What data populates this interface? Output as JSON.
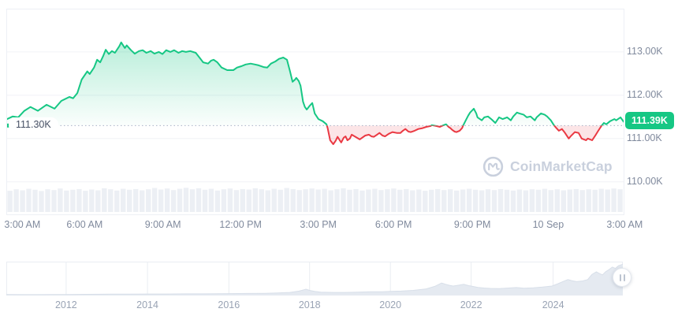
{
  "watermark": {
    "text": "CoinMarketCap"
  },
  "chart": {
    "colors": {
      "up": "#16C784",
      "down": "#EA3943",
      "up_fill_top": "rgba(22,199,132,0.30)",
      "up_fill_bottom": "rgba(22,199,132,0.02)",
      "down_fill": "rgba(234,57,67,0.13)",
      "grid": "#F0F2F6",
      "panel_border": "#EDF0F5",
      "axis_label": "#808A9D",
      "baseline_dot": "#A9B3C6",
      "baseline_label": "#465064",
      "volume": "#ECEFF4",
      "watermark": "#C9D0DD",
      "nav_fill": "#E5EAF1",
      "nav_edge": "#D8DFE9",
      "nav_grid": "#EAEDF2",
      "nav_year": "#99A3B4",
      "handle_bar": "#BCC4D0"
    }
  },
  "chart_data": {
    "type": "area",
    "title": "",
    "y_axis": {
      "ymin": 109.25,
      "ymax": 113.98,
      "tick_values": [
        113,
        112,
        111,
        110
      ],
      "tick_labels": [
        "113.00K",
        "112.00K",
        "111.00K",
        "110.00K"
      ]
    },
    "x_axis": {
      "ticks": [
        {
          "label": "3:00 AM",
          "x": 0.026
        },
        {
          "label": "6:00 AM",
          "x": 0.127
        },
        {
          "label": "9:00 AM",
          "x": 0.254
        },
        {
          "label": "12:00 PM",
          "x": 0.38
        },
        {
          "label": "3:00 PM",
          "x": 0.506
        },
        {
          "label": "6:00 PM",
          "x": 0.628
        },
        {
          "label": "9:00 PM",
          "x": 0.756
        },
        {
          "label": "10 Sep",
          "x": 0.879
        },
        {
          "label": "3:00 AM",
          "x": 1.003
        }
      ]
    },
    "baseline": {
      "value": 111.3,
      "label": "111.30K"
    },
    "last_price": {
      "value": 111.39,
      "label": "111.39K"
    },
    "series": {
      "name": "price",
      "points": [
        [
          0.0,
          111.45
        ],
        [
          0.009,
          111.51
        ],
        [
          0.018,
          111.49
        ],
        [
          0.028,
          111.64
        ],
        [
          0.038,
          111.73
        ],
        [
          0.05,
          111.64
        ],
        [
          0.064,
          111.78
        ],
        [
          0.077,
          111.69
        ],
        [
          0.088,
          111.87
        ],
        [
          0.101,
          111.96
        ],
        [
          0.107,
          111.93
        ],
        [
          0.114,
          112.05
        ],
        [
          0.121,
          112.36
        ],
        [
          0.13,
          112.55
        ],
        [
          0.134,
          112.49
        ],
        [
          0.141,
          112.64
        ],
        [
          0.146,
          112.82
        ],
        [
          0.151,
          112.76
        ],
        [
          0.156,
          112.91
        ],
        [
          0.16,
          113.05
        ],
        [
          0.165,
          112.95
        ],
        [
          0.17,
          113.02
        ],
        [
          0.175,
          112.98
        ],
        [
          0.182,
          113.13
        ],
        [
          0.185,
          113.22
        ],
        [
          0.191,
          113.09
        ],
        [
          0.194,
          113.15
        ],
        [
          0.201,
          113.04
        ],
        [
          0.207,
          112.96
        ],
        [
          0.214,
          113.02
        ],
        [
          0.22,
          113.04
        ],
        [
          0.226,
          112.98
        ],
        [
          0.233,
          113.02
        ],
        [
          0.239,
          112.96
        ],
        [
          0.246,
          113.0
        ],
        [
          0.252,
          112.95
        ],
        [
          0.258,
          113.04
        ],
        [
          0.265,
          113.0
        ],
        [
          0.271,
          113.04
        ],
        [
          0.278,
          112.98
        ],
        [
          0.284,
          113.02
        ],
        [
          0.29,
          113.0
        ],
        [
          0.297,
          113.02
        ],
        [
          0.306,
          112.98
        ],
        [
          0.312,
          112.87
        ],
        [
          0.318,
          112.76
        ],
        [
          0.326,
          112.73
        ],
        [
          0.331,
          112.8
        ],
        [
          0.335,
          112.82
        ],
        [
          0.341,
          112.76
        ],
        [
          0.348,
          112.64
        ],
        [
          0.357,
          112.58
        ],
        [
          0.367,
          112.58
        ],
        [
          0.373,
          112.64
        ],
        [
          0.38,
          112.67
        ],
        [
          0.387,
          112.71
        ],
        [
          0.395,
          112.73
        ],
        [
          0.402,
          112.71
        ],
        [
          0.408,
          112.69
        ],
        [
          0.416,
          112.65
        ],
        [
          0.422,
          112.64
        ],
        [
          0.428,
          112.73
        ],
        [
          0.435,
          112.78
        ],
        [
          0.441,
          112.84
        ],
        [
          0.448,
          112.87
        ],
        [
          0.454,
          112.82
        ],
        [
          0.459,
          112.55
        ],
        [
          0.463,
          112.31
        ],
        [
          0.467,
          112.36
        ],
        [
          0.469,
          112.4
        ],
        [
          0.473,
          112.33
        ],
        [
          0.476,
          112.22
        ],
        [
          0.48,
          111.85
        ],
        [
          0.483,
          111.73
        ],
        [
          0.486,
          111.67
        ],
        [
          0.491,
          111.76
        ],
        [
          0.495,
          111.82
        ],
        [
          0.499,
          111.58
        ],
        [
          0.505,
          111.45
        ],
        [
          0.512,
          111.4
        ],
        [
          0.518,
          111.33
        ],
        [
          0.52,
          111.24
        ],
        [
          0.524,
          110.96
        ],
        [
          0.529,
          110.87
        ],
        [
          0.533,
          110.95
        ],
        [
          0.536,
          111.04
        ],
        [
          0.54,
          110.95
        ],
        [
          0.542,
          110.91
        ],
        [
          0.546,
          111.02
        ],
        [
          0.549,
          111.05
        ],
        [
          0.552,
          110.96
        ],
        [
          0.556,
          111.0
        ],
        [
          0.559,
          111.09
        ],
        [
          0.565,
          111.04
        ],
        [
          0.572,
          110.98
        ],
        [
          0.574,
          111.0
        ],
        [
          0.581,
          111.07
        ],
        [
          0.587,
          111.09
        ],
        [
          0.591,
          111.05
        ],
        [
          0.595,
          111.04
        ],
        [
          0.6,
          111.09
        ],
        [
          0.604,
          111.13
        ],
        [
          0.609,
          111.07
        ],
        [
          0.613,
          111.05
        ],
        [
          0.619,
          111.11
        ],
        [
          0.625,
          111.15
        ],
        [
          0.632,
          111.13
        ],
        [
          0.638,
          111.13
        ],
        [
          0.642,
          111.18
        ],
        [
          0.646,
          111.22
        ],
        [
          0.651,
          111.16
        ],
        [
          0.655,
          111.15
        ],
        [
          0.661,
          111.18
        ],
        [
          0.667,
          111.22
        ],
        [
          0.674,
          111.24
        ],
        [
          0.68,
          111.27
        ],
        [
          0.687,
          111.29
        ],
        [
          0.689,
          111.31
        ],
        [
          0.696,
          111.29
        ],
        [
          0.702,
          111.27
        ],
        [
          0.708,
          111.31
        ],
        [
          0.712,
          111.33
        ],
        [
          0.716,
          111.27
        ],
        [
          0.719,
          111.24
        ],
        [
          0.722,
          111.2
        ],
        [
          0.726,
          111.16
        ],
        [
          0.729,
          111.15
        ],
        [
          0.734,
          111.18
        ],
        [
          0.738,
          111.24
        ],
        [
          0.74,
          111.31
        ],
        [
          0.744,
          111.42
        ],
        [
          0.748,
          111.53
        ],
        [
          0.751,
          111.6
        ],
        [
          0.757,
          111.69
        ],
        [
          0.761,
          111.58
        ],
        [
          0.763,
          111.49
        ],
        [
          0.77,
          111.42
        ],
        [
          0.774,
          111.49
        ],
        [
          0.78,
          111.51
        ],
        [
          0.786,
          111.44
        ],
        [
          0.792,
          111.36
        ],
        [
          0.798,
          111.49
        ],
        [
          0.804,
          111.45
        ],
        [
          0.811,
          111.49
        ],
        [
          0.817,
          111.42
        ],
        [
          0.821,
          111.51
        ],
        [
          0.827,
          111.6
        ],
        [
          0.831,
          111.58
        ],
        [
          0.838,
          111.55
        ],
        [
          0.843,
          111.49
        ],
        [
          0.849,
          111.51
        ],
        [
          0.856,
          111.42
        ],
        [
          0.859,
          111.49
        ],
        [
          0.866,
          111.58
        ],
        [
          0.872,
          111.55
        ],
        [
          0.876,
          111.51
        ],
        [
          0.882,
          111.42
        ],
        [
          0.887,
          111.31
        ],
        [
          0.891,
          111.24
        ],
        [
          0.895,
          111.18
        ],
        [
          0.9,
          111.22
        ],
        [
          0.904,
          111.15
        ],
        [
          0.911,
          111.0
        ],
        [
          0.914,
          111.05
        ],
        [
          0.921,
          111.15
        ],
        [
          0.927,
          111.13
        ],
        [
          0.932,
          111.0
        ],
        [
          0.939,
          110.96
        ],
        [
          0.942,
          111.0
        ],
        [
          0.949,
          110.96
        ],
        [
          0.955,
          111.09
        ],
        [
          0.959,
          111.18
        ],
        [
          0.964,
          111.29
        ],
        [
          0.968,
          111.36
        ],
        [
          0.972,
          111.33
        ],
        [
          0.978,
          111.4
        ],
        [
          0.985,
          111.45
        ],
        [
          0.988,
          111.42
        ],
        [
          0.995,
          111.49
        ],
        [
          1.0,
          111.39
        ]
      ]
    },
    "volume": [
      0.84,
      0.9,
      0.86,
      0.92,
      0.88,
      0.83,
      0.9,
      0.87,
      0.93,
      0.85,
      0.88,
      0.91,
      0.84,
      0.89,
      0.86,
      0.94,
      0.9,
      0.85,
      0.92,
      0.88,
      0.91,
      0.86,
      0.9,
      0.95,
      0.89,
      0.93,
      0.87,
      0.92,
      0.96,
      0.9,
      0.94,
      0.88,
      0.92,
      0.85,
      0.9,
      0.93,
      0.87,
      0.91,
      0.89,
      0.94,
      0.9,
      0.86,
      0.92,
      0.88,
      0.95,
      0.91,
      0.87,
      0.9,
      0.93,
      0.89,
      0.92,
      0.86,
      0.9,
      0.94,
      0.88,
      0.91,
      0.85,
      0.89,
      0.92,
      0.87,
      0.9,
      0.93,
      0.88,
      0.91,
      0.86,
      0.89,
      0.84,
      0.88,
      0.91,
      0.87,
      0.9,
      0.85,
      0.89,
      0.92,
      0.88,
      0.86,
      0.9,
      0.87,
      0.91,
      0.88,
      0.85,
      0.89,
      0.86,
      0.9,
      0.88,
      0.92,
      0.87,
      0.9,
      0.86,
      0.89,
      0.91,
      0.87,
      0.9,
      0.88,
      0.92,
      0.89,
      0.93,
      0.9
    ],
    "navigator": {
      "years": [
        {
          "label": "2012",
          "x": 0.097
        },
        {
          "label": "2014",
          "x": 0.229
        },
        {
          "label": "2016",
          "x": 0.361
        },
        {
          "label": "2018",
          "x": 0.492
        },
        {
          "label": "2020",
          "x": 0.623
        },
        {
          "label": "2022",
          "x": 0.754
        },
        {
          "label": "2024",
          "x": 0.887
        }
      ],
      "points": [
        [
          0,
          0.03
        ],
        [
          0.04,
          0.025
        ],
        [
          0.08,
          0.03
        ],
        [
          0.097,
          0.03
        ],
        [
          0.13,
          0.035
        ],
        [
          0.17,
          0.04
        ],
        [
          0.2,
          0.04
        ],
        [
          0.229,
          0.045
        ],
        [
          0.26,
          0.045
        ],
        [
          0.29,
          0.05
        ],
        [
          0.32,
          0.05
        ],
        [
          0.361,
          0.055
        ],
        [
          0.39,
          0.06
        ],
        [
          0.42,
          0.065
        ],
        [
          0.44,
          0.075
        ],
        [
          0.46,
          0.09
        ],
        [
          0.475,
          0.13
        ],
        [
          0.486,
          0.185
        ],
        [
          0.492,
          0.15
        ],
        [
          0.5,
          0.12
        ],
        [
          0.51,
          0.1
        ],
        [
          0.53,
          0.09
        ],
        [
          0.55,
          0.09
        ],
        [
          0.57,
          0.1
        ],
        [
          0.59,
          0.11
        ],
        [
          0.61,
          0.11
        ],
        [
          0.623,
          0.12
        ],
        [
          0.64,
          0.13
        ],
        [
          0.66,
          0.15
        ],
        [
          0.68,
          0.19
        ],
        [
          0.695,
          0.27
        ],
        [
          0.706,
          0.37
        ],
        [
          0.713,
          0.33
        ],
        [
          0.719,
          0.3
        ],
        [
          0.725,
          0.28
        ],
        [
          0.735,
          0.31
        ],
        [
          0.742,
          0.33
        ],
        [
          0.75,
          0.29
        ],
        [
          0.754,
          0.28
        ],
        [
          0.765,
          0.24
        ],
        [
          0.775,
          0.22
        ],
        [
          0.785,
          0.21
        ],
        [
          0.8,
          0.205
        ],
        [
          0.815,
          0.22
        ],
        [
          0.827,
          0.235
        ],
        [
          0.84,
          0.215
        ],
        [
          0.855,
          0.225
        ],
        [
          0.87,
          0.25
        ],
        [
          0.885,
          0.28
        ],
        [
          0.895,
          0.35
        ],
        [
          0.904,
          0.42
        ],
        [
          0.911,
          0.47
        ],
        [
          0.917,
          0.44
        ],
        [
          0.925,
          0.41
        ],
        [
          0.935,
          0.43
        ],
        [
          0.943,
          0.47
        ],
        [
          0.95,
          0.62
        ],
        [
          0.957,
          0.7
        ],
        [
          0.962,
          0.65
        ],
        [
          0.967,
          0.61
        ],
        [
          0.972,
          0.7
        ],
        [
          0.978,
          0.77
        ],
        [
          0.983,
          0.84
        ],
        [
          0.988,
          0.8
        ],
        [
          0.993,
          0.88
        ],
        [
          1,
          0.92
        ]
      ]
    }
  }
}
